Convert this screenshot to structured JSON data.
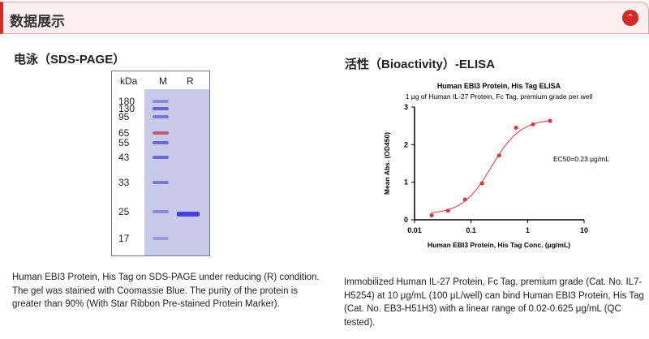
{
  "header": {
    "title": "数据展示",
    "toggle_icon": "chevron-up-icon",
    "accent": "#d42a2a"
  },
  "sds": {
    "title": "电泳（SDS-PAGE）",
    "kda_label": "kDa",
    "lanes": [
      "M",
      "R"
    ],
    "markers": [
      "180",
      "130",
      "95",
      "65",
      "55",
      "43",
      "33",
      "25",
      "17"
    ],
    "caption": "Human EBI3 Protein, His Tag on SDS-PAGE under reducing (R) condition. The gel was stained with Coomassie Blue. The purity of the protein is greater than 90% (With Star Ribbon Pre-stained Protein Marker)."
  },
  "elisa": {
    "title": "活性（Bioactivity）-ELISA",
    "caption": "Immobilized Human IL-27 Protein, Fc Tag, premium grade (Cat. No. IL7-H5254) at 10 μg/mL (100 μL/well) can bind Human EBI3 Protein, His Tag (Cat. No. EB3-H51H3) with a linear range of 0.02-0.625 μg/mL (QC tested)."
  },
  "chart_data": {
    "type": "scatter",
    "title": "Human EBI3 Protein, His Tag ELISA",
    "subtitle": "1 μg of Human IL-27 Protein, Fc Tag, premium grade per well",
    "xlabel": "Human EBI3 Protein, His Tag Conc. (μg/mL)",
    "ylabel": "Mean Abs. (OD450)",
    "xscale": "log",
    "xlim": [
      0.01,
      10
    ],
    "ylim": [
      0,
      3
    ],
    "xticks": [
      "0.01",
      "0.1",
      "1",
      "10"
    ],
    "yticks": [
      "0",
      "1",
      "2",
      "3"
    ],
    "x": [
      0.02,
      0.039,
      0.078,
      0.156,
      0.3125,
      0.625,
      1.25,
      2.5
    ],
    "y": [
      0.12,
      0.24,
      0.54,
      0.97,
      1.71,
      2.45,
      2.54,
      2.63
    ],
    "annotation": "EC50=0.23 μg/mL",
    "color": "#e0313d",
    "grid": false
  }
}
